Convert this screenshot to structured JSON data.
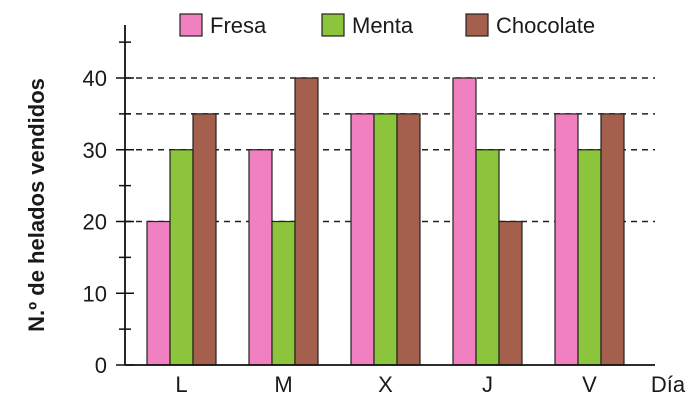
{
  "chart_data": {
    "type": "bar",
    "ylabel": "N.º de helados vendidos",
    "xlabel": "Día",
    "categories": [
      "L",
      "M",
      "X",
      "J",
      "V"
    ],
    "series": [
      {
        "name": "Fresa",
        "color": "#f080c0",
        "values": [
          20,
          30,
          35,
          40,
          35
        ]
      },
      {
        "name": "Menta",
        "color": "#8cc43c",
        "values": [
          30,
          20,
          35,
          30,
          30
        ]
      },
      {
        "name": "Chocolate",
        "color": "#a4604c",
        "values": [
          35,
          40,
          35,
          20,
          35
        ]
      }
    ],
    "yticks": [
      0,
      10,
      20,
      30,
      40
    ],
    "ylim": [
      0,
      40
    ],
    "grid": "dashed lines at 20, 30, 35 and 40",
    "legend": "top"
  }
}
